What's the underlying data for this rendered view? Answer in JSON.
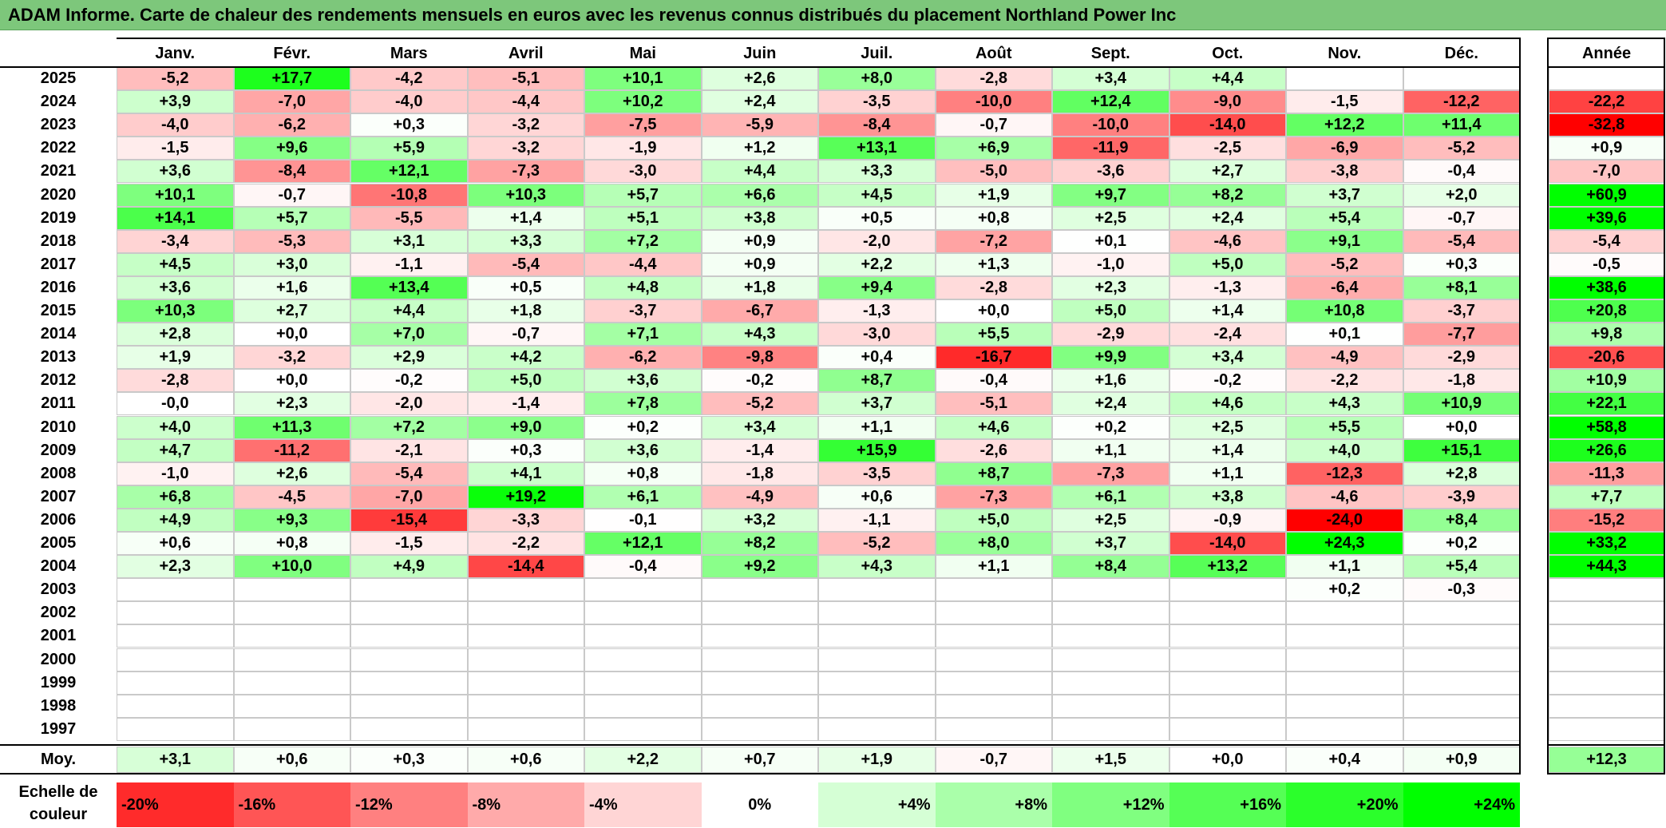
{
  "title": "ADAM Informe. Carte de chaleur des rendements mensuels en euros avec les revenus connus distribués du placement Northland Power Inc",
  "chart_data": {
    "type": "heatmap",
    "title": "ADAM Informe. Carte de chaleur des rendements mensuels en euros avec les revenus connus distribués du placement Northland Power Inc",
    "columns": [
      "Janv.",
      "Févr.",
      "Mars",
      "Avril",
      "Mai",
      "Juin",
      "Juil.",
      "Août",
      "Sept.",
      "Oct.",
      "Nov.",
      "Déc."
    ],
    "year_header": "Année",
    "rows": [
      {
        "year": "2025",
        "values": [
          "-5,2",
          "+17,7",
          "-4,2",
          "-5,1",
          "+10,1",
          "+2,6",
          "+8,0",
          "-2,8",
          "+3,4",
          "+4,4",
          "",
          ""
        ],
        "annual": ""
      },
      {
        "year": "2024",
        "values": [
          "+3,9",
          "-7,0",
          "-4,0",
          "-4,4",
          "+10,2",
          "+2,4",
          "-3,5",
          "-10,0",
          "+12,4",
          "-9,0",
          "-1,5",
          "-12,2"
        ],
        "annual": "-22,2"
      },
      {
        "year": "2023",
        "values": [
          "-4,0",
          "-6,2",
          "+0,3",
          "-3,2",
          "-7,5",
          "-5,9",
          "-8,4",
          "-0,7",
          "-10,0",
          "-14,0",
          "+12,2",
          "+11,4"
        ],
        "annual": "-32,8"
      },
      {
        "year": "2022",
        "values": [
          "-1,5",
          "+9,6",
          "+5,9",
          "-3,2",
          "-1,9",
          "+1,2",
          "+13,1",
          "+6,9",
          "-11,9",
          "-2,5",
          "-6,9",
          "-5,2"
        ],
        "annual": "+0,9"
      },
      {
        "year": "2021",
        "values": [
          "+3,6",
          "-8,4",
          "+12,1",
          "-7,3",
          "-3,0",
          "+4,4",
          "+3,3",
          "-5,0",
          "-3,6",
          "+2,7",
          "-3,8",
          "-0,4"
        ],
        "annual": "-7,0"
      },
      {
        "year": "2020",
        "values": [
          "+10,1",
          "-0,7",
          "-10,8",
          "+10,3",
          "+5,7",
          "+6,6",
          "+4,5",
          "+1,9",
          "+9,7",
          "+8,2",
          "+3,7",
          "+2,0"
        ],
        "annual": "+60,9"
      },
      {
        "year": "2019",
        "values": [
          "+14,1",
          "+5,7",
          "-5,5",
          "+1,4",
          "+5,1",
          "+3,8",
          "+0,5",
          "+0,8",
          "+2,5",
          "+2,4",
          "+5,4",
          "-0,7"
        ],
        "annual": "+39,6"
      },
      {
        "year": "2018",
        "values": [
          "-3,4",
          "-5,3",
          "+3,1",
          "+3,3",
          "+7,2",
          "+0,9",
          "-2,0",
          "-7,2",
          "+0,1",
          "-4,6",
          "+9,1",
          "-5,4"
        ],
        "annual": "-5,4"
      },
      {
        "year": "2017",
        "values": [
          "+4,5",
          "+3,0",
          "-1,1",
          "-5,4",
          "-4,4",
          "+0,9",
          "+2,2",
          "+1,3",
          "-1,0",
          "+5,0",
          "-5,2",
          "+0,3"
        ],
        "annual": "-0,5"
      },
      {
        "year": "2016",
        "values": [
          "+3,6",
          "+1,6",
          "+13,4",
          "+0,5",
          "+4,8",
          "+1,8",
          "+9,4",
          "-2,8",
          "+2,3",
          "-1,3",
          "-6,4",
          "+8,1"
        ],
        "annual": "+38,6"
      },
      {
        "year": "2015",
        "values": [
          "+10,3",
          "+2,7",
          "+4,4",
          "+1,8",
          "-3,7",
          "-6,7",
          "-1,3",
          "+0,0",
          "+5,0",
          "+1,4",
          "+10,8",
          "-3,7"
        ],
        "annual": "+20,8"
      },
      {
        "year": "2014",
        "values": [
          "+2,8",
          "+0,0",
          "+7,0",
          "-0,7",
          "+7,1",
          "+4,3",
          "-3,0",
          "+5,5",
          "-2,9",
          "-2,4",
          "+0,1",
          "-7,7"
        ],
        "annual": "+9,8"
      },
      {
        "year": "2013",
        "values": [
          "+1,9",
          "-3,2",
          "+2,9",
          "+4,2",
          "-6,2",
          "-9,8",
          "+0,4",
          "-16,7",
          "+9,9",
          "+3,4",
          "-4,9",
          "-2,9"
        ],
        "annual": "-20,6"
      },
      {
        "year": "2012",
        "values": [
          "-2,8",
          "+0,0",
          "-0,2",
          "+5,0",
          "+3,6",
          "-0,2",
          "+8,7",
          "-0,4",
          "+1,6",
          "-0,2",
          "-2,2",
          "-1,8"
        ],
        "annual": "+10,9"
      },
      {
        "year": "2011",
        "values": [
          "-0,0",
          "+2,3",
          "-2,0",
          "-1,4",
          "+7,8",
          "-5,2",
          "+3,7",
          "-5,1",
          "+2,4",
          "+4,6",
          "+4,3",
          "+10,9"
        ],
        "annual": "+22,1"
      },
      {
        "year": "2010",
        "values": [
          "+4,0",
          "+11,3",
          "+7,2",
          "+9,0",
          "+0,2",
          "+3,4",
          "+1,1",
          "+4,6",
          "+0,2",
          "+2,5",
          "+5,5",
          "+0,0"
        ],
        "annual": "+58,8"
      },
      {
        "year": "2009",
        "values": [
          "+4,7",
          "-11,2",
          "-2,1",
          "+0,3",
          "+3,6",
          "-1,4",
          "+15,9",
          "-2,6",
          "+1,1",
          "+1,4",
          "+4,0",
          "+15,1"
        ],
        "annual": "+26,6"
      },
      {
        "year": "2008",
        "values": [
          "-1,0",
          "+2,6",
          "-5,4",
          "+4,1",
          "+0,8",
          "-1,8",
          "-3,5",
          "+8,7",
          "-7,3",
          "+1,1",
          "-12,3",
          "+2,8"
        ],
        "annual": "-11,3"
      },
      {
        "year": "2007",
        "values": [
          "+6,8",
          "-4,5",
          "-7,0",
          "+19,2",
          "+6,1",
          "-4,9",
          "+0,6",
          "-7,3",
          "+6,1",
          "+3,8",
          "-4,6",
          "-3,9"
        ],
        "annual": "+7,7"
      },
      {
        "year": "2006",
        "values": [
          "+4,9",
          "+9,3",
          "-15,4",
          "-3,3",
          "-0,1",
          "+3,2",
          "-1,1",
          "+5,0",
          "+2,5",
          "-0,9",
          "-24,0",
          "+8,4"
        ],
        "annual": "-15,2"
      },
      {
        "year": "2005",
        "values": [
          "+0,6",
          "+0,8",
          "-1,5",
          "-2,2",
          "+12,1",
          "+8,2",
          "-5,2",
          "+8,0",
          "+3,7",
          "-14,0",
          "+24,3",
          "+0,2"
        ],
        "annual": "+33,2"
      },
      {
        "year": "2004",
        "values": [
          "+2,3",
          "+10,0",
          "+4,9",
          "-14,4",
          "-0,4",
          "+9,2",
          "+4,3",
          "+1,1",
          "+8,4",
          "+13,2",
          "+1,1",
          "+5,4"
        ],
        "annual": "+44,3"
      },
      {
        "year": "2003",
        "values": [
          "",
          "",
          "",
          "",
          "",
          "",
          "",
          "",
          "",
          "",
          "+0,2",
          "-0,3"
        ],
        "annual": ""
      },
      {
        "year": "2002",
        "values": [
          "",
          "",
          "",
          "",
          "",
          "",
          "",
          "",
          "",
          "",
          "",
          ""
        ],
        "annual": ""
      },
      {
        "year": "2001",
        "values": [
          "",
          "",
          "",
          "",
          "",
          "",
          "",
          "",
          "",
          "",
          "",
          ""
        ],
        "annual": ""
      },
      {
        "year": "2000",
        "values": [
          "",
          "",
          "",
          "",
          "",
          "",
          "",
          "",
          "",
          "",
          "",
          ""
        ],
        "annual": ""
      },
      {
        "year": "1999",
        "values": [
          "",
          "",
          "",
          "",
          "",
          "",
          "",
          "",
          "",
          "",
          "",
          ""
        ],
        "annual": ""
      },
      {
        "year": "1998",
        "values": [
          "",
          "",
          "",
          "",
          "",
          "",
          "",
          "",
          "",
          "",
          "",
          ""
        ],
        "annual": ""
      },
      {
        "year": "1997",
        "values": [
          "",
          "",
          "",
          "",
          "",
          "",
          "",
          "",
          "",
          "",
          "",
          ""
        ],
        "annual": ""
      }
    ],
    "average": {
      "label": "Moy.",
      "values": [
        "+3,1",
        "+0,6",
        "+0,3",
        "+0,6",
        "+2,2",
        "+0,7",
        "+1,9",
        "-0,7",
        "+1,5",
        "+0,0",
        "+0,4",
        "+0,9"
      ],
      "annual": "+12,3"
    },
    "scale": {
      "label_line1": "Echelle de",
      "label_line2": "couleur",
      "stops": [
        {
          "label": "-20%",
          "value": -20
        },
        {
          "label": "-16%",
          "value": -16
        },
        {
          "label": "-12%",
          "value": -12
        },
        {
          "label": "-8%",
          "value": -8
        },
        {
          "label": "-4%",
          "value": -4
        },
        {
          "label": "0%",
          "value": 0
        },
        {
          "label": "+4%",
          "value": 4
        },
        {
          "label": "+8%",
          "value": 8
        },
        {
          "label": "+12%",
          "value": 12
        },
        {
          "label": "+16%",
          "value": 16
        },
        {
          "label": "+20%",
          "value": 20
        },
        {
          "label": "+24%",
          "value": 24
        }
      ]
    },
    "colors": {
      "negative_max": "#ff0000",
      "neutral": "#ffffff",
      "positive_max": "#00ff00",
      "title_bar": "#7dc77b"
    }
  }
}
